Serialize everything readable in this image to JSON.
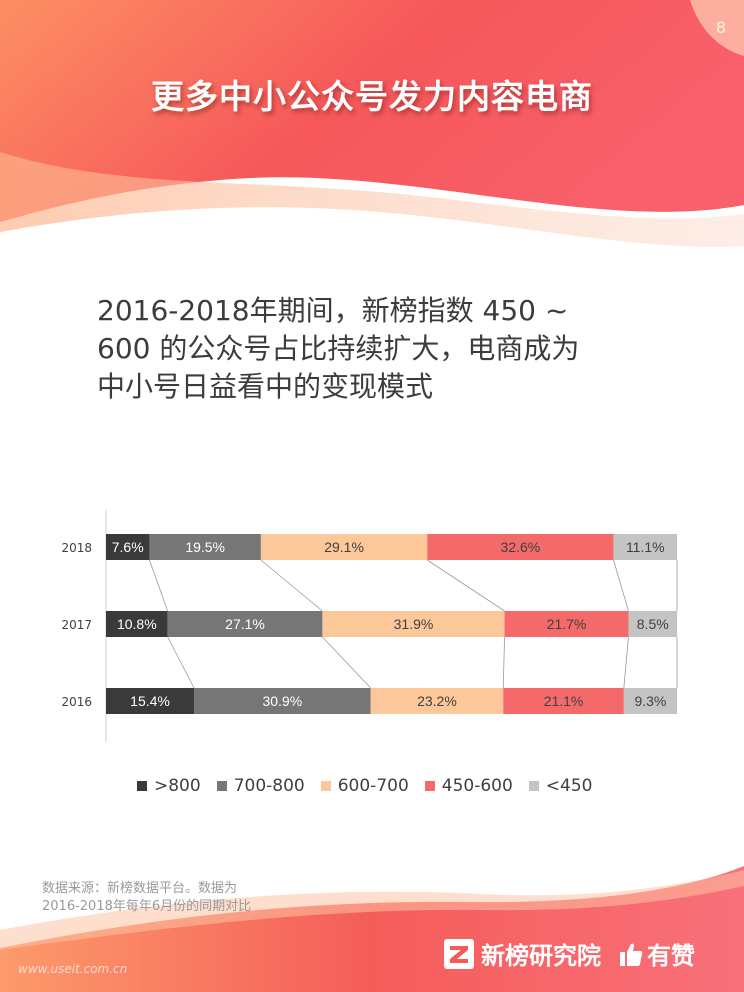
{
  "page": {
    "number": "8",
    "title": "更多中小公众号发力内容电商",
    "subtitle_lines": [
      "2016-2018年期间，新榜指数 450 ~",
      "600 的公众号占比持续扩大，电商成为",
      "中小号日益看中的变现模式"
    ]
  },
  "chart_data": {
    "type": "bar",
    "orientation": "horizontal",
    "stacked": "percent",
    "categories": [
      "2018",
      "2017",
      "2016"
    ],
    "series": [
      {
        "name": ">800",
        "color": "#3a3a3a",
        "label_color": "#ffffff",
        "values": [
          7.6,
          10.8,
          15.4
        ],
        "labels": [
          "7.6%",
          "10.8%",
          "15.4%"
        ]
      },
      {
        "name": "700-800",
        "color": "#767676",
        "label_color": "#ffffff",
        "values": [
          19.5,
          27.1,
          30.9
        ],
        "labels": [
          "19.5%",
          "27.1%",
          "30.9%"
        ]
      },
      {
        "name": "600-700",
        "color": "#fcc89a",
        "label_color": "#404040",
        "values": [
          29.1,
          31.9,
          23.2
        ],
        "labels": [
          "29.1%",
          "31.9%",
          "23.2%"
        ]
      },
      {
        "name": "450-600",
        "color": "#f46a6a",
        "label_color": "#404040",
        "values": [
          32.6,
          21.7,
          21.1
        ],
        "labels": [
          "32.6%",
          "21.7%",
          "21.1%"
        ]
      },
      {
        "name": "<450",
        "color": "#c4c4c4",
        "label_color": "#404040",
        "values": [
          11.1,
          8.5,
          9.3
        ],
        "labels": [
          "11.1%",
          "8.5%",
          "9.3%"
        ]
      }
    ],
    "series_lines": true,
    "legend": "bottom",
    "grid": false
  },
  "footer": {
    "source_lines": [
      "数据来源：新榜数据平台。数据为",
      "2016-2018年每年6月份的同期对比"
    ],
    "brand_primary": "新榜研究院",
    "brand_secondary": "有赞",
    "watermark": "www.useit.com.cn"
  },
  "colors": {
    "accent_red": "#f45a55",
    "accent_orange": "#fd9a6a",
    "accent_pink": "#f86e74"
  }
}
